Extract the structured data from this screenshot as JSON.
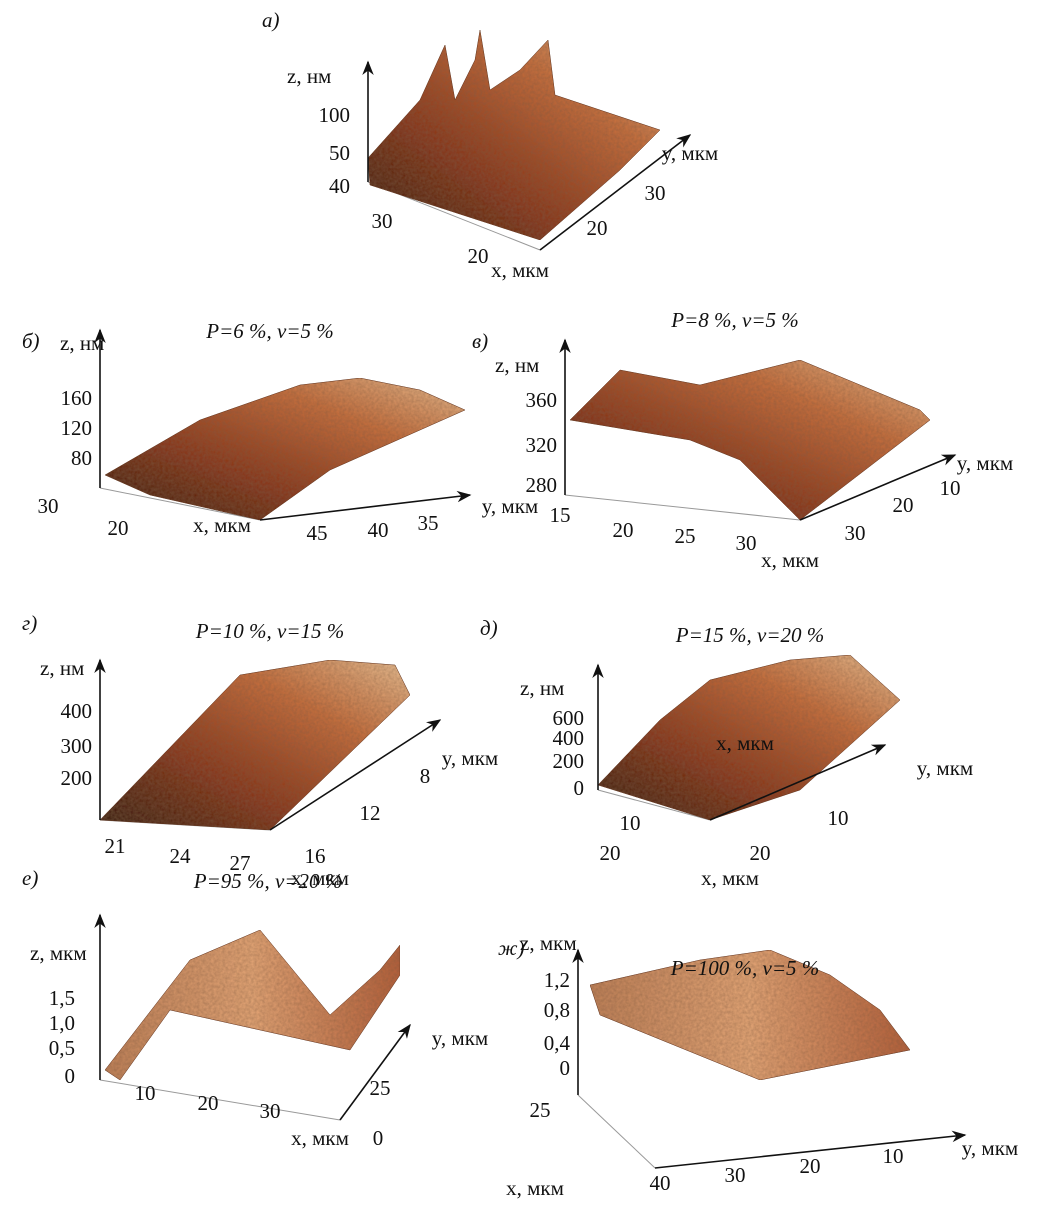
{
  "panels": [
    {
      "label": "a)",
      "z_label": "z, нм",
      "z_ticks": [
        "100",
        "50",
        "40"
      ],
      "x_label": "x, мкм",
      "x_ticks": [
        "30",
        "20"
      ],
      "y_label": "y, мкм",
      "y_ticks": [
        "20",
        "30"
      ]
    },
    {
      "label": "б)",
      "title": "P=6 %, v=5 %",
      "z_label": "z, нм",
      "z_ticks": [
        "160",
        "120",
        "80"
      ],
      "x_label": "x, мкм",
      "x_ticks": [
        "30",
        "20"
      ],
      "y_label": "y, мкм",
      "y_ticks": [
        "45",
        "40",
        "35"
      ]
    },
    {
      "label": "в)",
      "title": "P=8 %, v=5 %",
      "z_label": "z, нм",
      "z_ticks": [
        "360",
        "320",
        "280"
      ],
      "x_label": "x, мкм",
      "x_ticks": [
        "15",
        "20",
        "25",
        "30"
      ],
      "y_label": "y, мкм",
      "y_ticks": [
        "30",
        "20",
        "10"
      ]
    },
    {
      "label": "г)",
      "title": "P=10 %, v=15 %",
      "z_label": "z, нм",
      "z_ticks": [
        "400",
        "300",
        "200"
      ],
      "x_label": "x, мкм",
      "x_ticks": [
        "21",
        "24",
        "27"
      ],
      "y_label": "y, мкм",
      "y_ticks": [
        "16",
        "12",
        "8"
      ]
    },
    {
      "label": "д)",
      "title": "P=15 %, v=20 %",
      "z_label": "z, нм",
      "z_ticks": [
        "600",
        "400",
        "200",
        "0"
      ],
      "x_label": "x, мкм",
      "x_ticks": [
        "10",
        "20"
      ],
      "y_label": "y, мкм",
      "y_ticks": [
        "20",
        "10"
      ],
      "inner_label": "x, мкм"
    },
    {
      "label": "е)",
      "title": "P=95 %, v=20 %",
      "z_label": "z, мкм",
      "z_ticks": [
        "1,5",
        "1,0",
        "0,5",
        "0"
      ],
      "x_label": "x, мкм",
      "x_ticks": [
        "10",
        "20",
        "30"
      ],
      "y_label": "y, мкм",
      "y_ticks": [
        "25",
        "0"
      ]
    },
    {
      "label": "ж)",
      "title": "P=100 %, v=5 %",
      "z_label": "z, мкм",
      "z_ticks": [
        "1,2",
        "0,8",
        "0,4",
        "0"
      ],
      "x_label": "x, мкм",
      "x_ticks": [
        "25"
      ],
      "y_label": "y, мкм",
      "y_ticks": [
        "40",
        "30",
        "20",
        "10"
      ]
    }
  ]
}
